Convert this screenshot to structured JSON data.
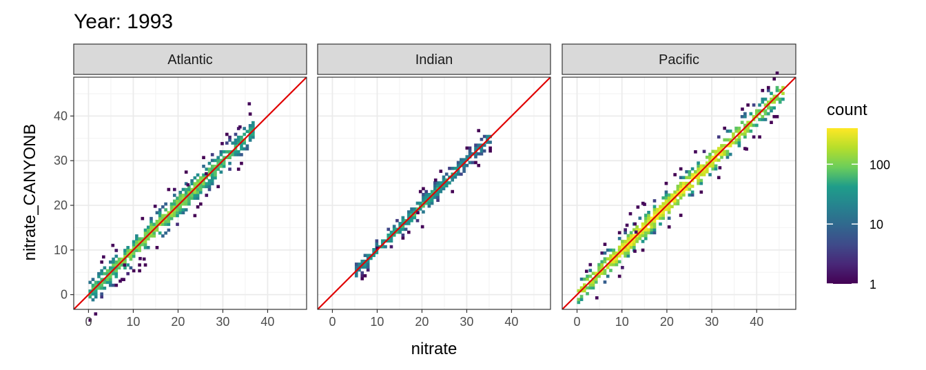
{
  "chart_data": {
    "type": "heatmap",
    "title": "Year: 1993",
    "xlabel": "nitrate",
    "ylabel": "nitrate_CANYONB",
    "xlim": [
      -3.3,
      48.7
    ],
    "ylim": [
      -3.3,
      48.7
    ],
    "x_ticks": [
      "0",
      "10",
      "20",
      "30",
      "40"
    ],
    "y_ticks": [
      "0",
      "10",
      "20",
      "30",
      "40"
    ],
    "facets": [
      {
        "name": "Atlantic",
        "x_range": [
          0,
          37
        ],
        "spread": 2.5,
        "max_count": 150
      },
      {
        "name": "Indian",
        "x_range": [
          5,
          35
        ],
        "spread": 1.8,
        "max_count": 60
      },
      {
        "name": "Pacific",
        "x_range": [
          0,
          46
        ],
        "spread": 2.2,
        "max_count": 400
      }
    ],
    "reference_line": {
      "slope": 1,
      "intercept": 0,
      "color": "#e00000"
    },
    "legend": {
      "title": "count",
      "scale": "log",
      "labels": [
        "100",
        "10",
        "1"
      ],
      "position": "right"
    },
    "grid": true
  }
}
